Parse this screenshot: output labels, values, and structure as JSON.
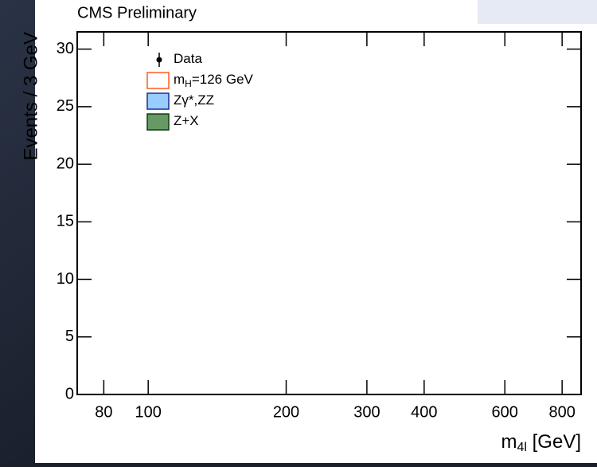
{
  "chart_data": {
    "type": "histogram",
    "title": "CMS Preliminary",
    "y_label": "Events / 3 GeV",
    "x_label": {
      "main": "m",
      "sub": "4l",
      "rest": " [GeV]"
    },
    "x_log": true,
    "xlim": [
      70,
      880
    ],
    "xticks": [
      80,
      100,
      200,
      300,
      400,
      600,
      800
    ],
    "ylim": [
      0,
      31.5
    ],
    "yticks": [
      0,
      5,
      10,
      15,
      20,
      25,
      30
    ],
    "legend": [
      {
        "main": "Data",
        "style": "marker",
        "color": "#000000"
      },
      {
        "main": "m",
        "sub": "H",
        "rest": "=126 GeV",
        "style": "outline",
        "color": "#ff5a1f"
      },
      {
        "main": "Zγ*,ZZ",
        "style": "fill",
        "color": "#99ccff",
        "edge": "#1a2e8f"
      },
      {
        "main": "Z+X",
        "style": "fill",
        "color": "#669966",
        "edge": "#0d3d0d"
      }
    ]
  }
}
